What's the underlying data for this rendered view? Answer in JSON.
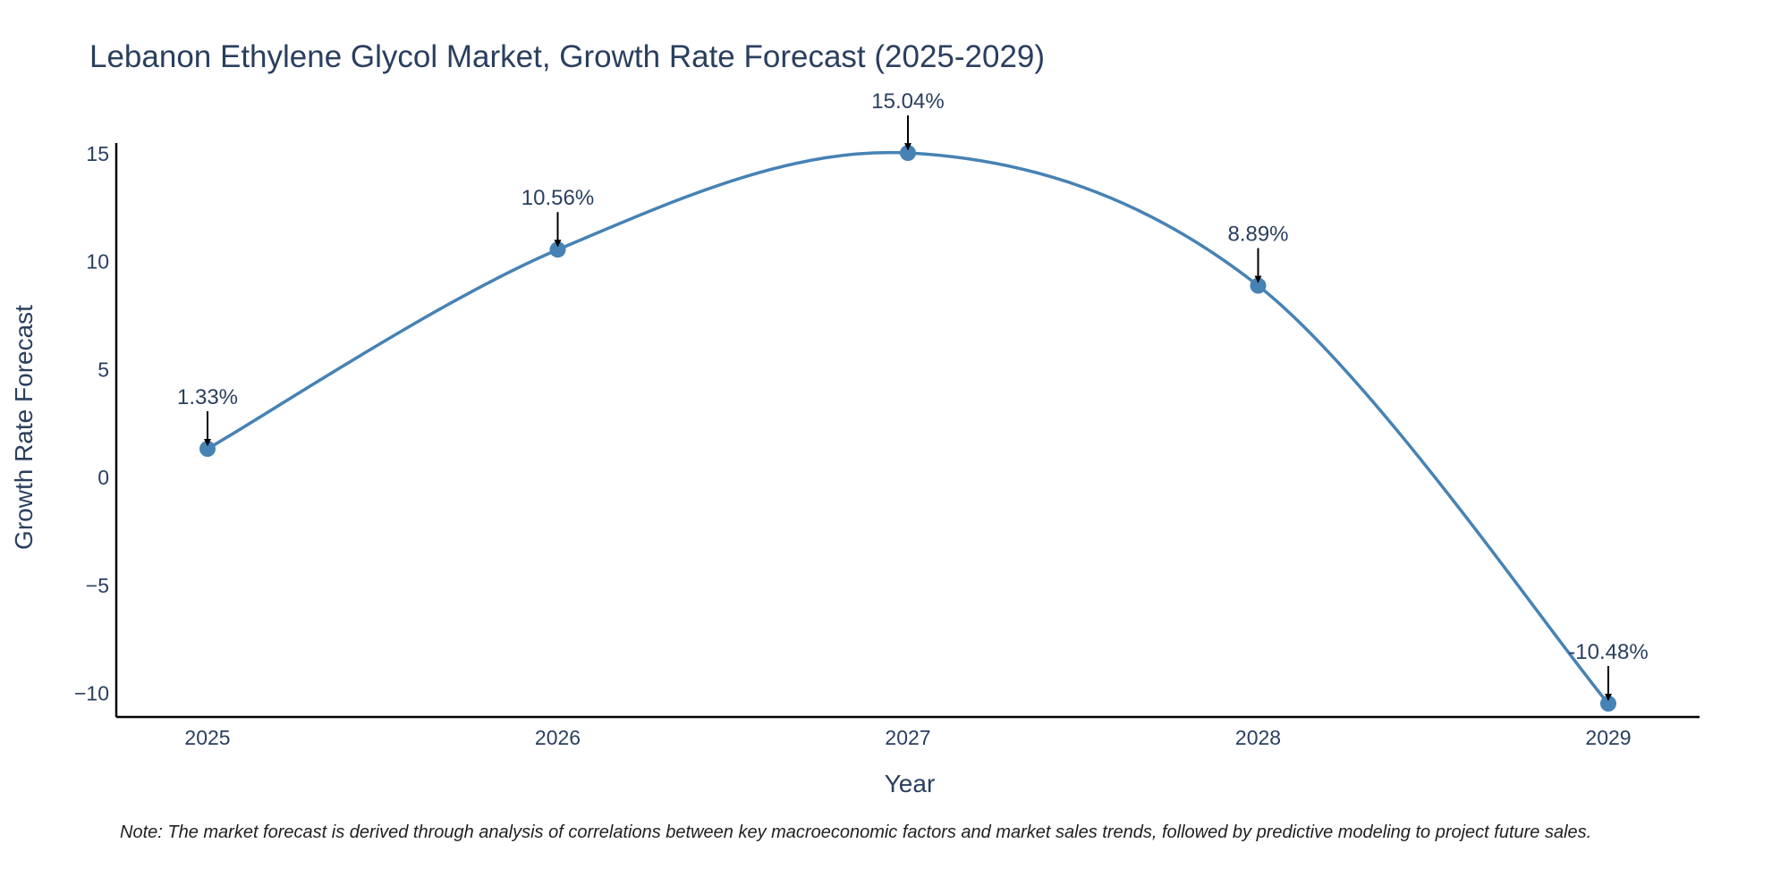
{
  "chart_data": {
    "type": "line",
    "title": "Lebanon Ethylene Glycol Market, Growth Rate Forecast (2025-2029)",
    "xlabel": "Year",
    "ylabel": "Growth Rate Forecast",
    "categories": [
      "2025",
      "2026",
      "2027",
      "2028",
      "2029"
    ],
    "values": [
      1.33,
      10.56,
      15.04,
      8.89,
      -10.48
    ],
    "data_labels": [
      "1.33%",
      "10.56%",
      "15.04%",
      "8.89%",
      "-10.48%"
    ],
    "yticks": [
      15,
      10,
      5,
      0,
      -5,
      -10
    ],
    "ytick_labels": [
      "15",
      "10",
      "5",
      "0",
      "−5",
      "−10"
    ],
    "ylim": [
      -11.1,
      15.5
    ],
    "grid": false,
    "line_color": "#4682b4",
    "marker_color": "#4682b4",
    "note": "Note: The market forecast is derived through analysis of correlations between key macroeconomic factors and market sales trends, followed by predictive modeling to project future sales."
  }
}
